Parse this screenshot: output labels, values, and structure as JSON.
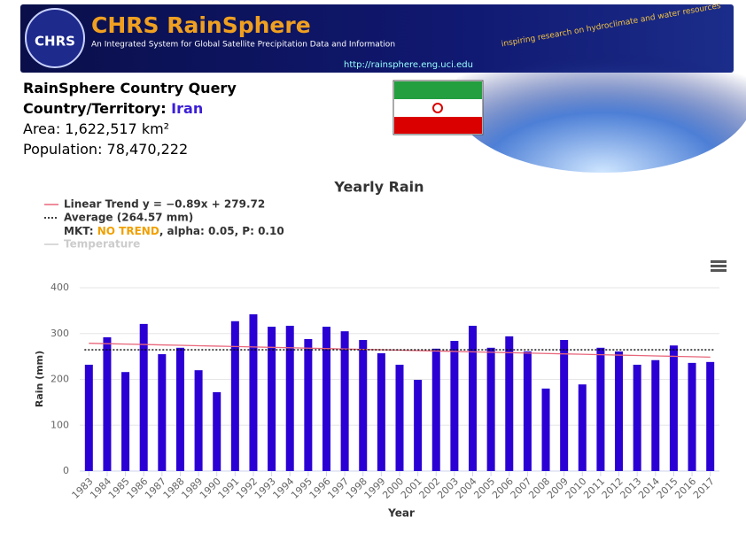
{
  "header": {
    "logo": "CHRS",
    "title": "CHRS RainSphere",
    "subtitle": "An Integrated System for Global Satellite Precipitation Data and Information",
    "url": "http://rainsphere.eng.uci.edu",
    "slogan": "inspiring research on hydroclimate and water resources"
  },
  "country": {
    "heading": "RainSphere Country Query",
    "label": "Country/Territory:",
    "name": "Iran",
    "area": "Area: 1,622,517 km²",
    "population": "Population: 78,470,222"
  },
  "chart_data": {
    "type": "bar",
    "title": "Yearly Rain",
    "x_label": "Year",
    "y_label": "Rain (mm)",
    "categories": [
      "1983",
      "1984",
      "1985",
      "1986",
      "1987",
      "1988",
      "1989",
      "1990",
      "1991",
      "1992",
      "1993",
      "1994",
      "1995",
      "1996",
      "1997",
      "1998",
      "1999",
      "2000",
      "2001",
      "2002",
      "2003",
      "2004",
      "2005",
      "2006",
      "2007",
      "2008",
      "2009",
      "2010",
      "2011",
      "2012",
      "2013",
      "2014",
      "2015",
      "2016",
      "2017"
    ],
    "series": [
      {
        "name": "Rain",
        "color": "#2a00d4",
        "values": [
          232,
          292,
          216,
          321,
          255,
          269,
          220,
          172,
          327,
          342,
          315,
          317,
          288,
          315,
          305,
          286,
          257,
          232,
          199,
          267,
          284,
          317,
          269,
          294,
          261,
          180,
          286,
          189,
          269,
          261,
          232,
          242,
          274,
          236,
          238
        ]
      },
      {
        "name": "Linear Trend y = −0.89x + 279.72",
        "type": "line",
        "color": "#e8667a",
        "values": [
          278.83,
          277.94,
          277.05,
          276.16,
          275.27,
          274.38,
          273.49,
          272.6,
          271.71,
          270.82,
          269.93,
          269.04,
          268.15,
          267.26,
          266.37,
          265.48,
          264.59,
          263.7,
          262.81,
          261.92,
          261.03,
          260.14,
          259.25,
          258.36,
          257.47,
          256.58,
          255.69,
          254.8,
          253.91,
          253.02,
          252.13,
          251.24,
          250.35,
          249.46,
          248.57
        ]
      }
    ],
    "average": {
      "name": "Average (264.57 mm)",
      "value": 264.57,
      "color": "#000000"
    },
    "mkt": {
      "prefix": "MKT:",
      "result": "NO TREND",
      "rest": ", alpha: 0.05, P: 0.10"
    },
    "hidden_series": "Temperature",
    "ylim": [
      0,
      400
    ],
    "yticks": [
      0,
      100,
      200,
      300,
      400
    ],
    "grid": true
  }
}
